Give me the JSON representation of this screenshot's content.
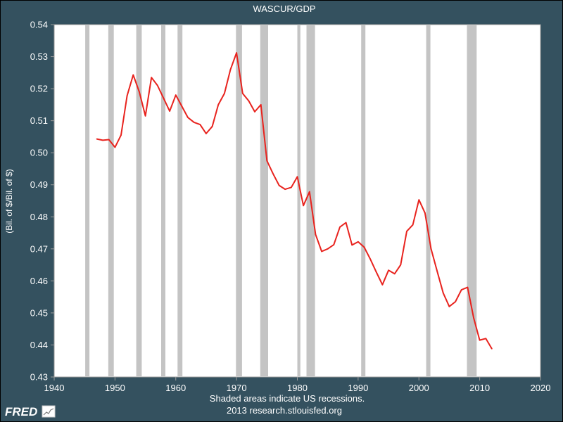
{
  "chart_data": {
    "type": "line",
    "title": "WASCUR/GDP",
    "ylabel": "(Bil. of $/Bil. of $)",
    "xlabel": "",
    "xlim": [
      1940,
      2020
    ],
    "ylim": [
      0.43,
      0.54
    ],
    "x_ticks": [
      "1940",
      "1950",
      "1960",
      "1970",
      "1980",
      "1990",
      "2000",
      "2010",
      "2020"
    ],
    "y_ticks": [
      "0.43",
      "0.44",
      "0.45",
      "0.46",
      "0.47",
      "0.48",
      "0.49",
      "0.50",
      "0.51",
      "0.52",
      "0.53",
      "0.54"
    ],
    "grid": false,
    "colors": {
      "line": "#e8231e",
      "recession": "#c4c4c4",
      "plot_bg": "#ffffff",
      "page_bg": "#34515f"
    },
    "recessions": [
      [
        1945.1,
        1945.8
      ],
      [
        1948.9,
        1949.8
      ],
      [
        1953.5,
        1954.4
      ],
      [
        1957.6,
        1958.3
      ],
      [
        1960.3,
        1961.1
      ],
      [
        1969.9,
        1970.9
      ],
      [
        1973.9,
        1975.2
      ],
      [
        1980.0,
        1980.5
      ],
      [
        1981.5,
        1982.9
      ],
      [
        1990.5,
        1991.2
      ],
      [
        2001.2,
        2001.9
      ],
      [
        2007.9,
        2009.5
      ]
    ],
    "series": [
      {
        "values": [
          [
            1947,
            0.5043
          ],
          [
            1948,
            0.5039
          ],
          [
            1949,
            0.5041
          ],
          [
            1950,
            0.5017
          ],
          [
            1951,
            0.5055
          ],
          [
            1952,
            0.5178
          ],
          [
            1953,
            0.5243
          ],
          [
            1954,
            0.519
          ],
          [
            1955,
            0.5115
          ],
          [
            1956,
            0.5235
          ],
          [
            1957,
            0.521
          ],
          [
            1958,
            0.517
          ],
          [
            1959,
            0.513
          ],
          [
            1960,
            0.518
          ],
          [
            1961,
            0.5145
          ],
          [
            1962,
            0.511
          ],
          [
            1963,
            0.5095
          ],
          [
            1964,
            0.5088
          ],
          [
            1965,
            0.506
          ],
          [
            1966,
            0.5082
          ],
          [
            1967,
            0.515
          ],
          [
            1968,
            0.5185
          ],
          [
            1969,
            0.526
          ],
          [
            1970,
            0.5312
          ],
          [
            1971,
            0.5185
          ],
          [
            1972,
            0.5162
          ],
          [
            1973,
            0.5128
          ],
          [
            1974,
            0.515
          ],
          [
            1975,
            0.4975
          ],
          [
            1976,
            0.4935
          ],
          [
            1977,
            0.4898
          ],
          [
            1978,
            0.4886
          ],
          [
            1979,
            0.4892
          ],
          [
            1980,
            0.4925
          ],
          [
            1981,
            0.4835
          ],
          [
            1982,
            0.4878
          ],
          [
            1983,
            0.4745
          ],
          [
            1984,
            0.4692
          ],
          [
            1985,
            0.47
          ],
          [
            1986,
            0.4713
          ],
          [
            1987,
            0.4768
          ],
          [
            1988,
            0.4782
          ],
          [
            1989,
            0.4712
          ],
          [
            1990,
            0.4722
          ],
          [
            1991,
            0.4705
          ],
          [
            1992,
            0.4668
          ],
          [
            1993,
            0.4627
          ],
          [
            1994,
            0.4588
          ],
          [
            1995,
            0.4633
          ],
          [
            1996,
            0.4622
          ],
          [
            1997,
            0.465
          ],
          [
            1998,
            0.4755
          ],
          [
            1999,
            0.4775
          ],
          [
            2000,
            0.4853
          ],
          [
            2001,
            0.4812
          ],
          [
            2002,
            0.47
          ],
          [
            2003,
            0.463
          ],
          [
            2004,
            0.4562
          ],
          [
            2005,
            0.452
          ],
          [
            2006,
            0.4535
          ],
          [
            2007,
            0.4572
          ],
          [
            2008,
            0.458
          ],
          [
            2009,
            0.4485
          ],
          [
            2010,
            0.4415
          ],
          [
            2011,
            0.442
          ],
          [
            2012,
            0.4388
          ]
        ]
      }
    ]
  },
  "footer": {
    "line1": "Shaded areas indicate US recessions.",
    "line2": "2013 research.stlouisfed.org"
  },
  "logo": {
    "text": "FRED"
  }
}
